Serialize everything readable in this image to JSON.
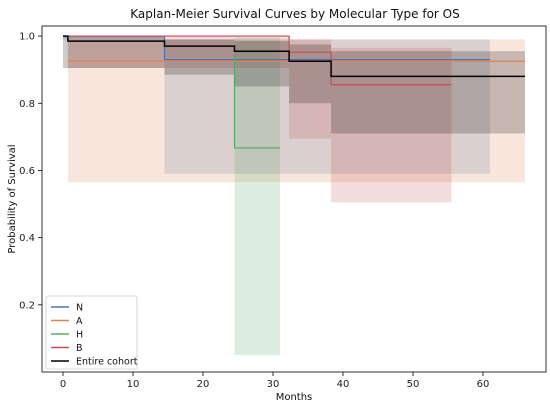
{
  "chart_data": {
    "type": "line",
    "title": "Kaplan-Meier Survival Curves by Molecular Type for OS",
    "xlabel": "Months",
    "ylabel": "Probability of Survival",
    "xlim": [
      -3,
      69
    ],
    "ylim": [
      0.0,
      1.03
    ],
    "x_ticks": [
      0,
      10,
      20,
      30,
      40,
      50,
      60
    ],
    "y_ticks": [
      0.2,
      0.4,
      0.6,
      0.8,
      1.0
    ],
    "grid": false,
    "legend_position": "lower-left",
    "series": [
      {
        "name": "N",
        "color": "#4c72b0",
        "steps": [
          [
            0,
            1.0
          ],
          [
            14.5,
            0.93
          ],
          [
            61,
            0.93
          ]
        ],
        "ci_steps": [
          [
            0,
            0.99,
            1.0
          ],
          [
            14.5,
            0.59,
            0.99
          ],
          [
            61,
            0.59,
            0.99
          ]
        ]
      },
      {
        "name": "A",
        "color": "#dd8452",
        "steps": [
          [
            0.7,
            0.925
          ],
          [
            66,
            0.925
          ]
        ],
        "ci_steps": [
          [
            0.7,
            0.565,
            0.99
          ],
          [
            66,
            0.565,
            0.99
          ]
        ]
      },
      {
        "name": "H",
        "color": "#55a868",
        "steps": [
          [
            24.5,
            0.945
          ],
          [
            24.5,
            0.667
          ],
          [
            31,
            0.667
          ]
        ],
        "ci_steps": [
          [
            24.5,
            0.05,
            0.995
          ],
          [
            31,
            0.05,
            0.995
          ]
        ]
      },
      {
        "name": "B",
        "color": "#c44e52",
        "steps": [
          [
            0.7,
            1.0
          ],
          [
            32.3,
            0.952
          ],
          [
            38.3,
            0.855
          ],
          [
            55.5,
            0.855
          ]
        ],
        "ci_steps": [
          [
            0.7,
            0.905,
            1.0
          ],
          [
            32.3,
            0.695,
            0.99
          ],
          [
            38.3,
            0.505,
            0.965
          ],
          [
            55.5,
            0.505,
            0.965
          ]
        ]
      },
      {
        "name": "Entire cohort",
        "color": "#000000",
        "steps": [
          [
            0,
            1.0
          ],
          [
            0.7,
            0.985
          ],
          [
            14.5,
            0.97
          ],
          [
            24.5,
            0.955
          ],
          [
            32.3,
            0.925
          ],
          [
            38.3,
            0.88
          ],
          [
            66,
            0.88
          ]
        ],
        "ci_steps": [
          [
            0,
            0.905,
            1.0
          ],
          [
            14.5,
            0.885,
            0.99
          ],
          [
            24.5,
            0.85,
            0.985
          ],
          [
            32.3,
            0.8,
            0.975
          ],
          [
            38.3,
            0.71,
            0.955
          ],
          [
            66,
            0.71,
            0.955
          ]
        ]
      }
    ]
  }
}
